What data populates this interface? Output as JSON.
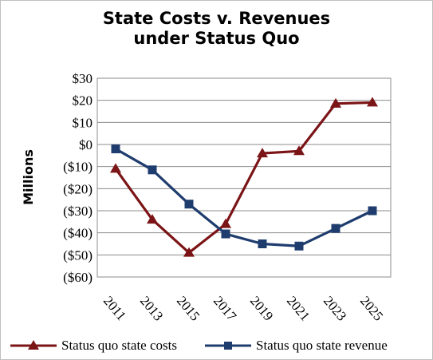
{
  "chart_data": {
    "type": "line",
    "title_lines": [
      "State Costs v. Revenues",
      "under Status Quo"
    ],
    "ylabel": "Millions",
    "xlabel": "",
    "categories": [
      "2011",
      "2013",
      "2015",
      "2017",
      "2019",
      "2021",
      "2023",
      "2025"
    ],
    "ylim": [
      -60,
      30
    ],
    "yticks": [
      30,
      20,
      10,
      0,
      -10,
      -20,
      -30,
      -40,
      -50,
      -60
    ],
    "ytick_labels": [
      "$30",
      "$20",
      "$10",
      "$0",
      "($10)",
      "($20)",
      "($30)",
      "($40)",
      "($50)",
      "($60)"
    ],
    "grid": true,
    "legend_position": "bottom",
    "series": [
      {
        "name": "Status quo state costs",
        "color": "#7b1416",
        "marker": "triangle",
        "values": [
          -11,
          -34,
          -49,
          -36,
          -4,
          -3,
          18.5,
          19
        ]
      },
      {
        "name": "Status quo state revenue",
        "color": "#1f3c6e",
        "marker": "square",
        "values": [
          -2,
          -11.5,
          -27,
          -40.5,
          -45,
          -46,
          -38,
          -30
        ]
      }
    ]
  }
}
